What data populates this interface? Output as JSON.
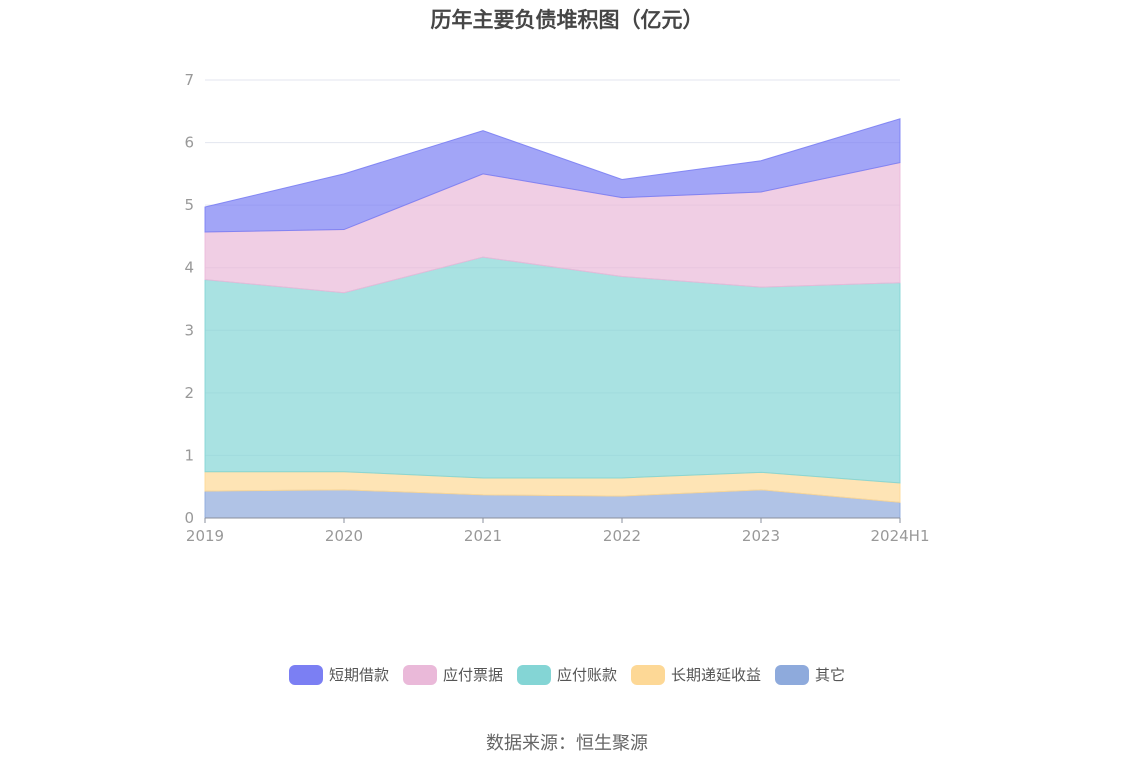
{
  "chart_data": {
    "type": "area",
    "stacked": true,
    "title": "历年主要负债堆积图（亿元）",
    "categories": [
      "2019",
      "2020",
      "2021",
      "2022",
      "2023",
      "2024H1"
    ],
    "y_ticks": [
      "0",
      "1",
      "2",
      "3",
      "4",
      "5",
      "6",
      "7"
    ],
    "ylim": [
      0,
      7
    ],
    "grid": true,
    "legend_position": "bottom",
    "series": [
      {
        "name": "其它",
        "color": "#8eaadc",
        "values": [
          0.43,
          0.45,
          0.37,
          0.35,
          0.45,
          0.25
        ]
      },
      {
        "name": "长期递延收益",
        "color": "#fdd896",
        "values": [
          0.31,
          0.29,
          0.27,
          0.29,
          0.28,
          0.31
        ]
      },
      {
        "name": "应付账款",
        "color": "#84d5d5",
        "values": [
          3.07,
          2.86,
          3.53,
          3.22,
          2.96,
          3.2
        ]
      },
      {
        "name": "应付票据",
        "color": "#eab9d9",
        "values": [
          0.76,
          1.01,
          1.33,
          1.26,
          1.52,
          1.92
        ]
      },
      {
        "name": "短期借款",
        "color": "#7b7ff3",
        "values": [
          0.4,
          0.89,
          0.69,
          0.29,
          0.5,
          0.7
        ]
      }
    ],
    "legend_order": [
      "短期借款",
      "应付票据",
      "应付账款",
      "长期递延收益",
      "其它"
    ]
  },
  "source": "数据来源：恒生聚源"
}
